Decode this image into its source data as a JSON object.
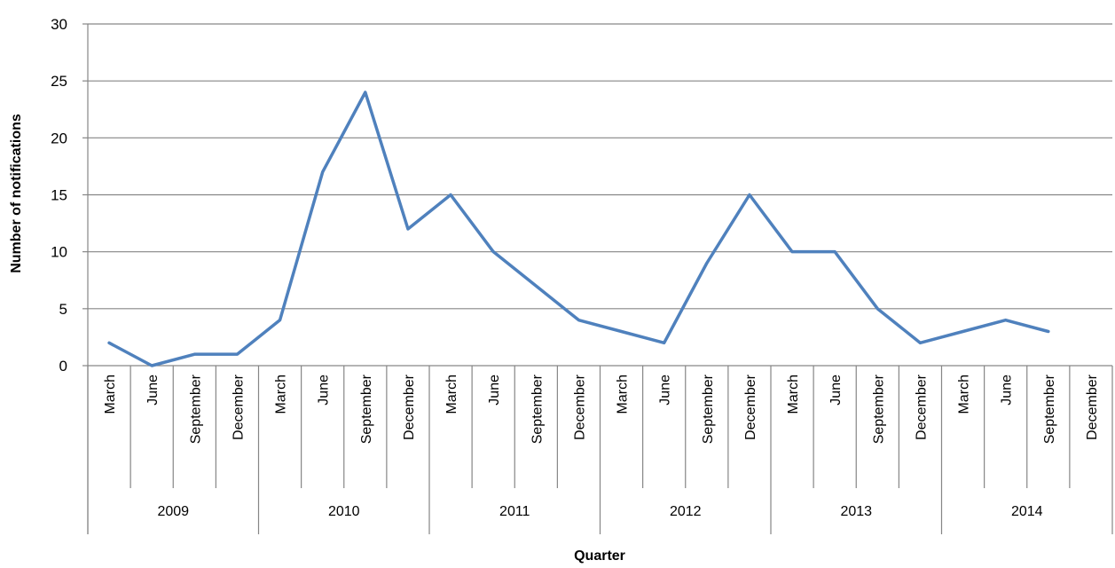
{
  "chart_data": {
    "type": "line",
    "xlabel": "Quarter",
    "ylabel": "Number of notifications",
    "ylim": [
      0,
      30
    ],
    "y_ticks": [
      "0",
      "5",
      "10",
      "15",
      "20",
      "25",
      "30"
    ],
    "grid": "horizontal",
    "legend": "none",
    "line_color": "#4F81BD",
    "years": [
      "2009",
      "2010",
      "2011",
      "2012",
      "2013",
      "2014"
    ],
    "quarters": [
      "March",
      "June",
      "September",
      "December"
    ],
    "categories": [
      "2009 March",
      "2009 June",
      "2009 September",
      "2009 December",
      "2010 March",
      "2010 June",
      "2010 September",
      "2010 December",
      "2011 March",
      "2011 June",
      "2011 September",
      "2011 December",
      "2012 March",
      "2012 June",
      "2012 September",
      "2012 December",
      "2013 March",
      "2013 June",
      "2013 September",
      "2013 December",
      "2014 March",
      "2014 June",
      "2014 September",
      "2014 December"
    ],
    "series": [
      {
        "values": [
          2,
          0,
          1,
          1,
          4,
          17,
          24,
          12,
          15,
          10,
          7,
          4,
          3,
          2,
          9,
          15,
          10,
          10,
          5,
          2,
          3,
          4,
          3,
          null
        ]
      }
    ]
  }
}
